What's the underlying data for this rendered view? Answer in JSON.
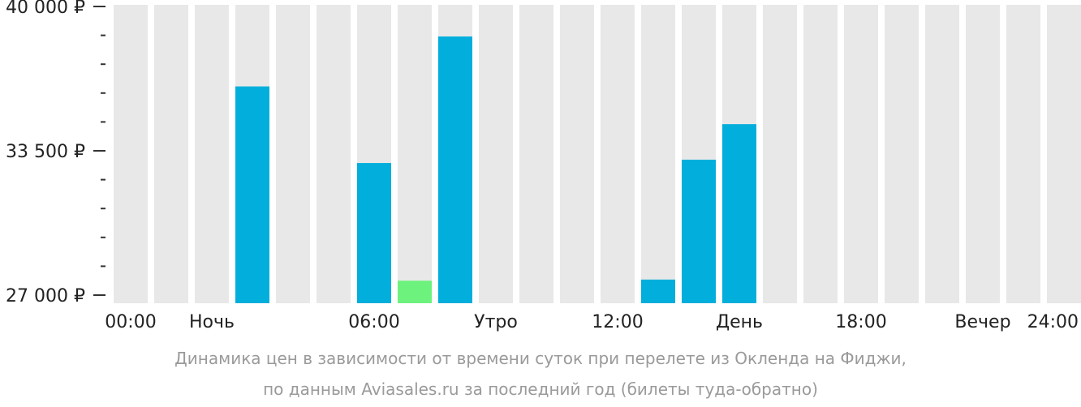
{
  "chart_data": {
    "type": "bar",
    "categories": [
      "00:00",
      "01:00",
      "02:00",
      "03:00",
      "04:00",
      "05:00",
      "06:00",
      "07:00",
      "08:00",
      "09:00",
      "10:00",
      "11:00",
      "12:00",
      "13:00",
      "14:00",
      "15:00",
      "16:00",
      "17:00",
      "18:00",
      "19:00",
      "20:00",
      "21:00",
      "22:00",
      "23:00"
    ],
    "values": [
      null,
      null,
      null,
      36400,
      null,
      null,
      32950,
      27650,
      38650,
      null,
      null,
      null,
      null,
      27700,
      33100,
      34700,
      null,
      null,
      null,
      null,
      null,
      null,
      null,
      null
    ],
    "ylim": [
      27000,
      40000
    ],
    "y_ticks": [
      {
        "value": 40000,
        "label": "40 000 ₽"
      },
      {
        "value": 33500,
        "label": "33 500 ₽"
      },
      {
        "value": 27000,
        "label": "27 000 ₽"
      }
    ],
    "minor_ticks_between": 4,
    "x_labels": [
      {
        "slot": 0,
        "label": "00:00"
      },
      {
        "slot": 2,
        "label": "Ночь"
      },
      {
        "slot": 6,
        "label": "06:00"
      },
      {
        "slot": 9,
        "label": "Утро"
      },
      {
        "slot": 12,
        "label": "12:00"
      },
      {
        "slot": 15,
        "label": "День"
      },
      {
        "slot": 18,
        "label": "18:00"
      },
      {
        "slot": 21,
        "label": "Вечер"
      },
      {
        "slot": 24,
        "label": "24:00"
      }
    ],
    "highlight_index": 7,
    "colors": {
      "bar": "#02aedb",
      "highlight": "#6df27e",
      "background_slot": "#e8e8e8",
      "axis": "#333333"
    }
  },
  "caption": {
    "line1": "Динамика цен в зависимости от времени суток при перелете из Окленда на Фиджи,",
    "line2": "по данным Aviasales.ru за последний год (билеты туда-обратно)"
  }
}
